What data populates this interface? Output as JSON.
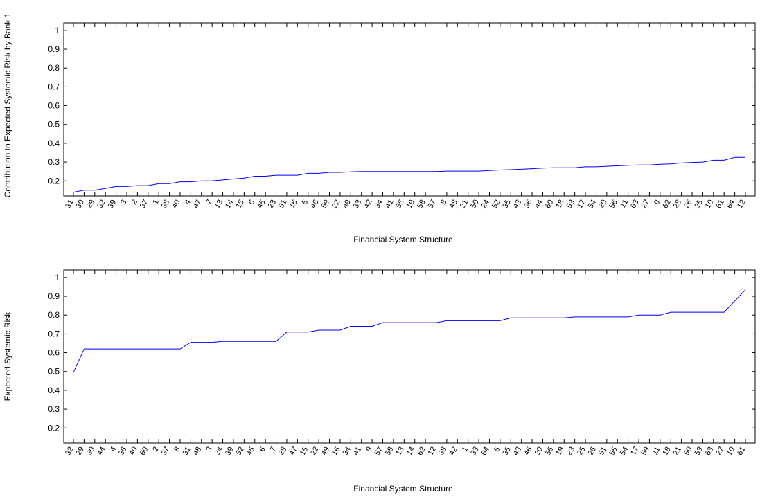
{
  "chart_data": [
    {
      "type": "line",
      "title": "",
      "xlabel": "Financial System Structure",
      "ylabel": "Contribution to Expected Systemic Risk by Bank 1",
      "ylim": [
        0.12,
        1.04
      ],
      "yticks": [
        "0.2",
        "0.3",
        "0.4",
        "0.5",
        "0.6",
        "0.7",
        "0.8",
        "0.9",
        "1"
      ],
      "grid": false,
      "line_color": "#0000ff",
      "categories": [
        "31",
        "30",
        "29",
        "32",
        "39",
        "3",
        "2",
        "37",
        "1",
        "38",
        "40",
        "4",
        "47",
        "7",
        "13",
        "14",
        "15",
        "6",
        "45",
        "23",
        "51",
        "16",
        "5",
        "46",
        "59",
        "22",
        "49",
        "33",
        "42",
        "34",
        "41",
        "55",
        "19",
        "58",
        "57",
        "8",
        "48",
        "21",
        "50",
        "24",
        "52",
        "35",
        "43",
        "36",
        "44",
        "60",
        "18",
        "53",
        "17",
        "54",
        "20",
        "56",
        "11",
        "63",
        "27",
        "9",
        "62",
        "28",
        "26",
        "25",
        "10",
        "61",
        "64",
        "12"
      ],
      "values": [
        0.14,
        0.15,
        0.15,
        0.16,
        0.17,
        0.17,
        0.175,
        0.175,
        0.185,
        0.185,
        0.195,
        0.195,
        0.2,
        0.2,
        0.205,
        0.21,
        0.215,
        0.225,
        0.225,
        0.23,
        0.23,
        0.23,
        0.24,
        0.24,
        0.245,
        0.245,
        0.248,
        0.25,
        0.25,
        0.25,
        0.25,
        0.25,
        0.25,
        0.25,
        0.25,
        0.252,
        0.252,
        0.252,
        0.252,
        0.255,
        0.258,
        0.26,
        0.262,
        0.265,
        0.268,
        0.27,
        0.27,
        0.27,
        0.275,
        0.275,
        0.278,
        0.28,
        0.283,
        0.285,
        0.285,
        0.288,
        0.29,
        0.295,
        0.298,
        0.3,
        0.31,
        0.31,
        0.325,
        0.325
      ]
    },
    {
      "type": "line",
      "title": "",
      "xlabel": "Financial System Structure",
      "ylabel": "Expected Systemic Risk",
      "ylim": [
        0.12,
        1.04
      ],
      "yticks": [
        "0.2",
        "0.3",
        "0.4",
        "0.5",
        "0.6",
        "0.7",
        "0.8",
        "0.9",
        "1"
      ],
      "grid": false,
      "line_color": "#0000ff",
      "categories": [
        "32",
        "29",
        "30",
        "44",
        "4",
        "36",
        "40",
        "60",
        "2",
        "37",
        "8",
        "31",
        "48",
        "3",
        "24",
        "39",
        "52",
        "45",
        "6",
        "7",
        "28",
        "47",
        "15",
        "22",
        "49",
        "16",
        "34",
        "41",
        "9",
        "57",
        "58",
        "13",
        "14",
        "62",
        "12",
        "38",
        "42",
        "1",
        "33",
        "64",
        "5",
        "35",
        "43",
        "46",
        "20",
        "56",
        "19",
        "23",
        "25",
        "26",
        "51",
        "55",
        "54",
        "17",
        "59",
        "11",
        "18",
        "21",
        "50",
        "53",
        "63",
        "27",
        "10",
        "61"
      ],
      "values": [
        0.495,
        0.62,
        0.62,
        0.62,
        0.62,
        0.62,
        0.62,
        0.62,
        0.62,
        0.62,
        0.62,
        0.655,
        0.655,
        0.655,
        0.66,
        0.66,
        0.66,
        0.66,
        0.66,
        0.66,
        0.71,
        0.71,
        0.71,
        0.72,
        0.72,
        0.72,
        0.74,
        0.74,
        0.74,
        0.76,
        0.76,
        0.76,
        0.76,
        0.76,
        0.76,
        0.77,
        0.77,
        0.77,
        0.77,
        0.77,
        0.77,
        0.785,
        0.785,
        0.785,
        0.785,
        0.785,
        0.785,
        0.79,
        0.79,
        0.79,
        0.79,
        0.79,
        0.79,
        0.8,
        0.8,
        0.8,
        0.815,
        0.815,
        0.815,
        0.815,
        0.815,
        0.815,
        0.875,
        0.935
      ]
    }
  ]
}
